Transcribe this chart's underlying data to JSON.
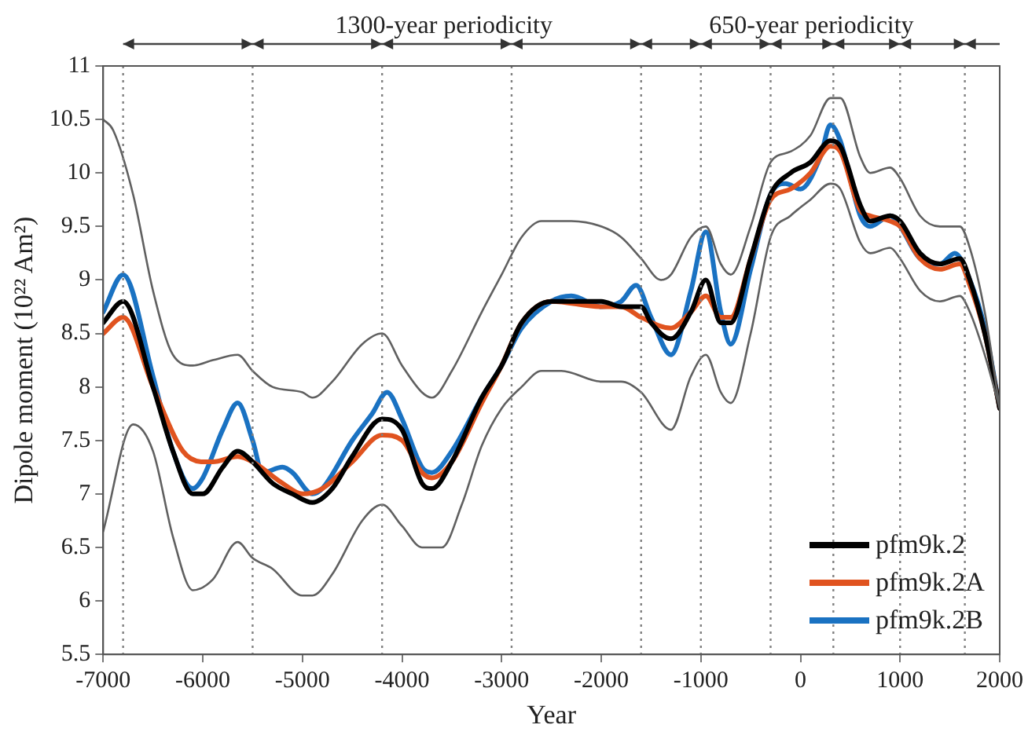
{
  "chart_data": {
    "type": "line",
    "xlabel": "Year",
    "ylabel": "Dipole moment (10²² Am²)",
    "annotations": [
      "1300-year periodicity",
      "650-year periodicity"
    ],
    "xlim": [
      -7000,
      2000
    ],
    "xticks": [
      -7000,
      -6000,
      -5000,
      -4000,
      -3000,
      -2000,
      -1000,
      0,
      1000,
      2000
    ],
    "ylim": [
      5.5,
      11
    ],
    "yticks": [
      5.5,
      6,
      6.5,
      7,
      7.5,
      8,
      8.5,
      9,
      9.5,
      10,
      10.5,
      11
    ],
    "grid": false,
    "legend": "bottom right",
    "marker": "none",
    "line_style": "solid",
    "ref_lines": [
      {
        "axis": "x",
        "value": -6800,
        "line_style": "dotted",
        "color": "#808080"
      },
      {
        "axis": "x",
        "value": -5500,
        "line_style": "dotted",
        "color": "#808080"
      },
      {
        "axis": "x",
        "value": -4200,
        "line_style": "dotted",
        "color": "#808080"
      },
      {
        "axis": "x",
        "value": -2900,
        "line_style": "dotted",
        "color": "#808080"
      },
      {
        "axis": "x",
        "value": -1600,
        "line_style": "dotted",
        "color": "#808080"
      },
      {
        "axis": "x",
        "value": -1000,
        "line_style": "dotted",
        "color": "#808080"
      },
      {
        "axis": "x",
        "value": -300,
        "line_style": "dotted",
        "color": "#808080"
      },
      {
        "axis": "x",
        "value": 330,
        "line_style": "dotted",
        "color": "#808080"
      },
      {
        "axis": "x",
        "value": 1000,
        "line_style": "dotted",
        "color": "#808080"
      },
      {
        "axis": "x",
        "value": 1650,
        "line_style": "dotted",
        "color": "#808080"
      }
    ],
    "series": [
      {
        "color": "#606060",
        "x": [
          -7000,
          -6900,
          -6700,
          -6500,
          -6300,
          -6100,
          -5900,
          -5650,
          -5500,
          -5300,
          -5000,
          -4900,
          -4700,
          -4400,
          -4200,
          -4000,
          -3800,
          -3700,
          -3500,
          -3200,
          -3000,
          -2800,
          -2600,
          -2300,
          -2000,
          -1800,
          -1600,
          -1400,
          -1300,
          -1100,
          -950,
          -800,
          -700,
          -500,
          -300,
          -100,
          100,
          300,
          400,
          600,
          700,
          900,
          1000,
          1200,
          1400,
          1600,
          1700,
          1850,
          2000
        ],
        "values": [
          10.5,
          10.4,
          9.8,
          8.9,
          8.3,
          8.2,
          8.25,
          8.3,
          8.15,
          8.0,
          7.95,
          7.9,
          8.05,
          8.4,
          8.5,
          8.2,
          7.95,
          7.9,
          8.15,
          8.7,
          9.05,
          9.4,
          9.55,
          9.55,
          9.5,
          9.4,
          9.2,
          9.0,
          9.05,
          9.4,
          9.5,
          9.15,
          9.05,
          9.5,
          10.1,
          10.2,
          10.35,
          10.7,
          10.7,
          10.15,
          10.0,
          10.05,
          9.95,
          9.6,
          9.5,
          9.5,
          9.3,
          8.7,
          7.8
        ]
      },
      {
        "color": "#606060",
        "x": [
          -7000,
          -6700,
          -6500,
          -6300,
          -6100,
          -5900,
          -5650,
          -5500,
          -5300,
          -5000,
          -4900,
          -4700,
          -4400,
          -4200,
          -4000,
          -3800,
          -3600,
          -3400,
          -3200,
          -3000,
          -2800,
          -2600,
          -2400,
          -2000,
          -1800,
          -1600,
          -1300,
          -1100,
          -950,
          -800,
          -700,
          -500,
          -300,
          -100,
          100,
          300,
          400,
          600,
          700,
          900,
          1000,
          1200,
          1400,
          1600,
          1700,
          1850,
          2000
        ],
        "values": [
          6.65,
          7.65,
          7.4,
          6.6,
          6.1,
          6.2,
          6.55,
          6.4,
          6.3,
          6.05,
          6.05,
          6.25,
          6.75,
          6.9,
          6.7,
          6.5,
          6.5,
          6.9,
          7.45,
          7.8,
          8.0,
          8.15,
          8.15,
          8.05,
          8.05,
          7.95,
          7.6,
          8.1,
          8.3,
          7.95,
          7.85,
          8.5,
          9.4,
          9.6,
          9.75,
          9.9,
          9.85,
          9.35,
          9.25,
          9.3,
          9.2,
          8.9,
          8.8,
          8.85,
          8.7,
          8.3,
          7.8
        ]
      },
      {
        "name": "pfm9k.2",
        "color": "#000000",
        "x": [
          -7000,
          -6800,
          -6500,
          -6300,
          -6100,
          -6000,
          -5800,
          -5650,
          -5500,
          -5300,
          -5100,
          -4900,
          -4700,
          -4500,
          -4200,
          -4000,
          -3800,
          -3700,
          -3500,
          -3200,
          -3000,
          -2800,
          -2500,
          -2000,
          -1800,
          -1600,
          -1500,
          -1300,
          -1100,
          -950,
          -800,
          -700,
          -500,
          -300,
          -100,
          100,
          300,
          400,
          600,
          700,
          900,
          1000,
          1200,
          1400,
          1600,
          1700,
          1850,
          2000
        ],
        "values": [
          8.6,
          8.8,
          8.0,
          7.4,
          7.0,
          7.0,
          7.25,
          7.4,
          7.3,
          7.1,
          7.0,
          6.92,
          7.05,
          7.35,
          7.7,
          7.6,
          7.1,
          7.05,
          7.3,
          7.9,
          8.2,
          8.6,
          8.8,
          8.8,
          8.75,
          8.75,
          8.6,
          8.45,
          8.7,
          9.0,
          8.6,
          8.6,
          9.2,
          9.8,
          10.0,
          10.1,
          10.3,
          10.25,
          9.7,
          9.55,
          9.6,
          9.55,
          9.25,
          9.15,
          9.2,
          9.0,
          8.5,
          7.8
        ]
      },
      {
        "name": "pfm9k.2A",
        "color": "#e0531f",
        "x": [
          -7000,
          -6800,
          -6500,
          -6200,
          -6000,
          -5900,
          -5650,
          -5500,
          -5200,
          -5000,
          -4800,
          -4500,
          -4200,
          -4000,
          -3800,
          -3700,
          -3500,
          -3200,
          -3000,
          -2800,
          -2500,
          -2000,
          -1800,
          -1600,
          -1300,
          -1100,
          -950,
          -800,
          -700,
          -500,
          -300,
          -100,
          100,
          300,
          400,
          600,
          700,
          900,
          1000,
          1200,
          1400,
          1600,
          1700,
          1850,
          2000
        ],
        "values": [
          8.5,
          8.65,
          8.0,
          7.4,
          7.3,
          7.3,
          7.35,
          7.3,
          7.1,
          7.0,
          7.05,
          7.3,
          7.55,
          7.5,
          7.2,
          7.15,
          7.3,
          7.85,
          8.2,
          8.6,
          8.8,
          8.75,
          8.75,
          8.65,
          8.55,
          8.7,
          8.85,
          8.65,
          8.65,
          9.2,
          9.75,
          9.85,
          10.0,
          10.25,
          10.2,
          9.65,
          9.6,
          9.55,
          9.5,
          9.2,
          9.1,
          9.15,
          8.95,
          8.5,
          7.8
        ]
      },
      {
        "name": "pfm9k.2B",
        "color": "#1a72c2",
        "x": [
          -7000,
          -6800,
          -6500,
          -6300,
          -6100,
          -6000,
          -5800,
          -5650,
          -5500,
          -5400,
          -5200,
          -5100,
          -4900,
          -4800,
          -4500,
          -4300,
          -4150,
          -4000,
          -3800,
          -3700,
          -3500,
          -3200,
          -3000,
          -2800,
          -2500,
          -2300,
          -2000,
          -1800,
          -1650,
          -1500,
          -1300,
          -1100,
          -950,
          -800,
          -700,
          -500,
          -300,
          -150,
          0,
          200,
          300,
          400,
          600,
          700,
          900,
          1000,
          1200,
          1400,
          1550,
          1700,
          1850,
          2000
        ],
        "values": [
          8.7,
          9.05,
          8.1,
          7.4,
          7.05,
          7.15,
          7.6,
          7.85,
          7.5,
          7.2,
          7.25,
          7.2,
          7.0,
          7.05,
          7.5,
          7.75,
          7.95,
          7.7,
          7.25,
          7.2,
          7.4,
          7.9,
          8.2,
          8.55,
          8.8,
          8.85,
          8.75,
          8.8,
          8.95,
          8.65,
          8.3,
          8.9,
          9.45,
          8.7,
          8.4,
          9.1,
          9.8,
          9.9,
          9.85,
          10.15,
          10.45,
          10.3,
          9.6,
          9.5,
          9.6,
          9.5,
          9.2,
          9.15,
          9.25,
          9.0,
          8.55,
          7.8
        ]
      }
    ]
  }
}
